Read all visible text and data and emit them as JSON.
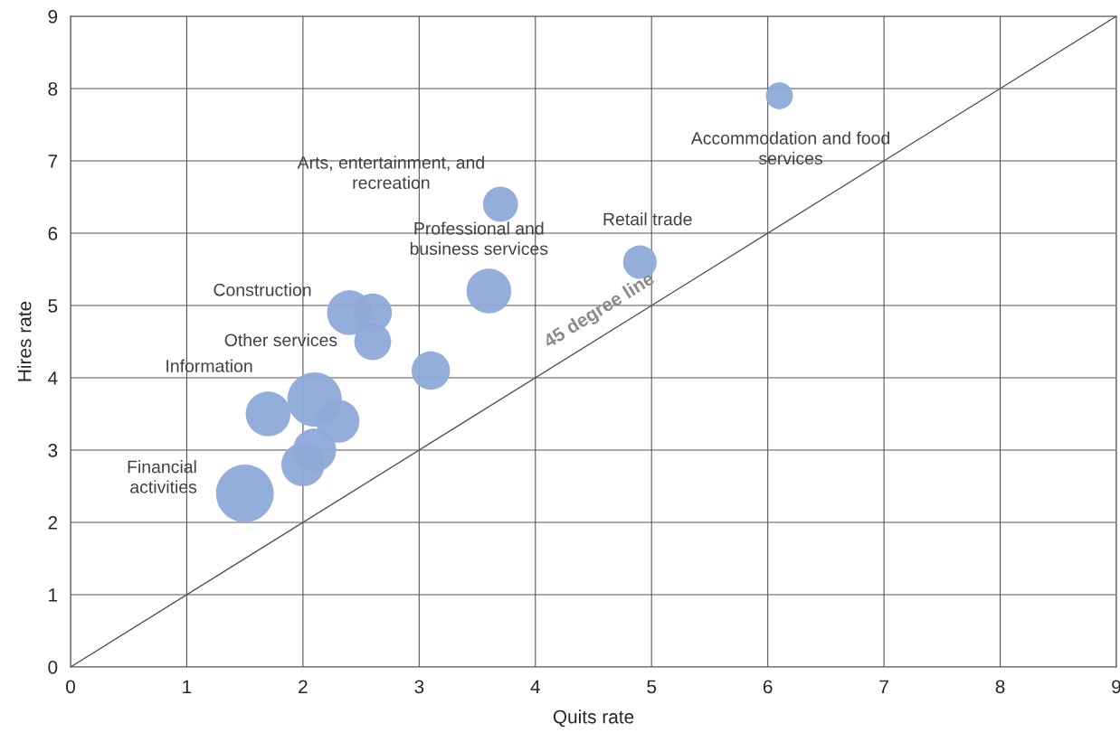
{
  "chart_data": {
    "type": "bubble",
    "xlabel": "Quits rate",
    "ylabel": "Hires rate",
    "xlim": [
      0,
      9
    ],
    "ylim": [
      0,
      9
    ],
    "xticks": [
      0,
      1,
      2,
      3,
      4,
      5,
      6,
      7,
      8,
      9
    ],
    "yticks": [
      0,
      1,
      2,
      3,
      4,
      5,
      6,
      7,
      8,
      9
    ],
    "grid": true,
    "legend": false,
    "series": [
      {
        "color": "#8eaad9",
        "x": [
          6.1,
          3.7,
          4.9,
          3.6,
          2.4,
          2.6,
          2.6,
          3.1,
          1.7,
          2.1,
          2.3,
          2.1,
          2.0,
          1.5
        ],
        "values": [
          7.9,
          6.4,
          5.6,
          5.2,
          4.9,
          4.9,
          4.5,
          4.1,
          3.5,
          3.7,
          3.4,
          3.0,
          2.8,
          2.4
        ],
        "sizes": [
          0.22,
          0.37,
          0.34,
          0.6,
          0.6,
          0.44,
          0.41,
          0.44,
          0.6,
          0.89,
          0.56,
          0.56,
          0.56,
          1
        ]
      },
      {
        "type": "line",
        "name": "45 degree line",
        "color": "#555555",
        "x": [
          0,
          9
        ],
        "values": [
          0,
          9
        ]
      }
    ],
    "annotations": [
      {
        "text": "Accommodation and food\nservices",
        "x": 6.1,
        "y": 7.9
      },
      {
        "text": "Arts, entertainment, and\nrecreation",
        "x": 3.7,
        "y": 6.4
      },
      {
        "text": "Retail trade",
        "x": 4.9,
        "y": 5.6
      },
      {
        "text": "Professional and\nbusiness services",
        "x": 3.6,
        "y": 5.2
      },
      {
        "text": "Construction",
        "x": 2.4,
        "y": 4.9
      },
      {
        "text": "Other services",
        "x": 2.6,
        "y": 4.5
      },
      {
        "text": "Information",
        "x": 1.7,
        "y": 3.5
      },
      {
        "text": "Financial\nactivities",
        "x": 1.5,
        "y": 2.4
      }
    ]
  }
}
